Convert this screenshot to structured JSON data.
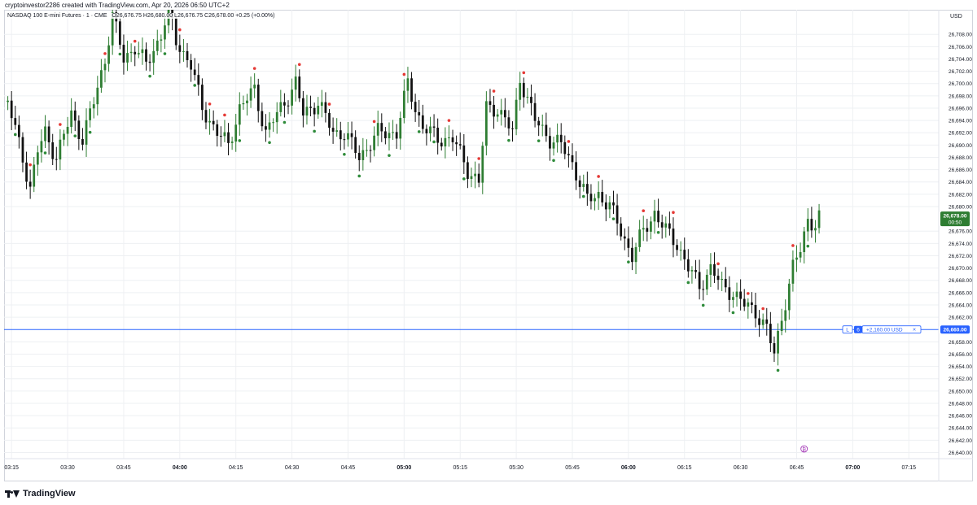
{
  "header": {
    "credit": "cryptoinvestor2286 created with TradingView.com, Apr 20, 2026 06:50 UTC+2"
  },
  "symbol_bar": {
    "name": "NASDAQ 100 E-mini Futures · 1 · CME",
    "ohlc": "O26,676.75 H26,680.00 L26,676.75 C26,678.00 +0.25 (+0.00%)"
  },
  "footer": {
    "brand": "TradingView"
  },
  "colors": {
    "up": "#2e7d32",
    "down": "#111111",
    "dot_up": "#2e8b3a",
    "dot_down": "#e53935",
    "price_label": "#2e7d32",
    "order_line": "#2962ff",
    "grid": "#eef0f3"
  },
  "chart_data": {
    "type": "candlestick",
    "currency_label": "USD",
    "y_ticks": [
      "26,708.00",
      "26,706.00",
      "26,704.00",
      "26,702.00",
      "26,700.00",
      "26,698.00",
      "26,696.00",
      "26,694.00",
      "26,692.00",
      "26,690.00",
      "26,688.00",
      "26,686.00",
      "26,684.00",
      "26,682.00",
      "26,680.00",
      "26,676.00",
      "26,674.00",
      "26,672.00",
      "26,670.00",
      "26,668.00",
      "26,666.00",
      "26,664.00",
      "26,662.00",
      "26,658.00",
      "26,656.00",
      "26,654.00",
      "26,652.00",
      "26,650.00",
      "26,648.00",
      "26,646.00",
      "26,644.00",
      "26,642.00",
      "26,640.00"
    ],
    "ylim": [
      26639,
      26712
    ],
    "x_ticks": [
      {
        "label": "03:15",
        "time": "03:15",
        "bold": false
      },
      {
        "label": "03:30",
        "time": "03:30",
        "bold": false
      },
      {
        "label": "03:45",
        "time": "03:45",
        "bold": false
      },
      {
        "label": "04:00",
        "time": "04:00",
        "bold": true
      },
      {
        "label": "04:15",
        "time": "04:15",
        "bold": false
      },
      {
        "label": "04:30",
        "time": "04:30",
        "bold": false
      },
      {
        "label": "04:45",
        "time": "04:45",
        "bold": false
      },
      {
        "label": "05:00",
        "time": "05:00",
        "bold": true
      },
      {
        "label": "05:15",
        "time": "05:15",
        "bold": false
      },
      {
        "label": "05:30",
        "time": "05:30",
        "bold": false
      },
      {
        "label": "05:45",
        "time": "05:45",
        "bold": false
      },
      {
        "label": "06:00",
        "time": "06:00",
        "bold": true
      },
      {
        "label": "06:15",
        "time": "06:15",
        "bold": false
      },
      {
        "label": "06:30",
        "time": "06:30",
        "bold": false
      },
      {
        "label": "06:45",
        "time": "06:45",
        "bold": false
      },
      {
        "label": "07:00",
        "time": "07:00",
        "bold": true
      },
      {
        "label": "07:15",
        "time": "07:15",
        "bold": false
      }
    ],
    "xlim": [
      "03:13",
      "07:23"
    ],
    "anchors": [
      {
        "time": "03:14",
        "price": 26697.0
      },
      {
        "time": "03:18",
        "price": 26688.0
      },
      {
        "time": "03:20",
        "price": 26683.0
      },
      {
        "time": "03:22",
        "price": 26689.0
      },
      {
        "time": "03:24",
        "price": 26692.0
      },
      {
        "time": "03:27",
        "price": 26688.0
      },
      {
        "time": "03:31",
        "price": 26695.0
      },
      {
        "time": "03:34",
        "price": 26691.0
      },
      {
        "time": "03:37",
        "price": 26697.0
      },
      {
        "time": "03:40",
        "price": 26704.0
      },
      {
        "time": "03:42",
        "price": 26711.0
      },
      {
        "time": "03:45",
        "price": 26704.0
      },
      {
        "time": "03:48",
        "price": 26706.0
      },
      {
        "time": "03:51",
        "price": 26703.0
      },
      {
        "time": "03:55",
        "price": 26708.0
      },
      {
        "time": "03:57",
        "price": 26712.0
      },
      {
        "time": "03:59",
        "price": 26707.0
      },
      {
        "time": "04:03",
        "price": 26703.0
      },
      {
        "time": "04:06",
        "price": 26696.0
      },
      {
        "time": "04:10",
        "price": 26692.0
      },
      {
        "time": "04:13",
        "price": 26690.0
      },
      {
        "time": "04:16",
        "price": 26696.0
      },
      {
        "time": "04:20",
        "price": 26699.0
      },
      {
        "time": "04:23",
        "price": 26692.0
      },
      {
        "time": "04:28",
        "price": 26697.0
      },
      {
        "time": "04:31",
        "price": 26700.0
      },
      {
        "time": "04:33",
        "price": 26695.0
      },
      {
        "time": "04:37",
        "price": 26697.0
      },
      {
        "time": "04:41",
        "price": 26692.0
      },
      {
        "time": "04:44",
        "price": 26692.0
      },
      {
        "time": "04:48",
        "price": 26688.0
      },
      {
        "time": "04:53",
        "price": 26692.0
      },
      {
        "time": "04:58",
        "price": 26692.0
      },
      {
        "time": "05:01",
        "price": 26700.0
      },
      {
        "time": "05:03",
        "price": 26696.0
      },
      {
        "time": "05:05",
        "price": 26693.0
      },
      {
        "time": "05:09",
        "price": 26691.0
      },
      {
        "time": "05:13",
        "price": 26691.0
      },
      {
        "time": "05:17",
        "price": 26686.0
      },
      {
        "time": "05:20",
        "price": 26684.0
      },
      {
        "time": "05:22",
        "price": 26696.0
      },
      {
        "time": "05:25",
        "price": 26696.0
      },
      {
        "time": "05:29",
        "price": 26692.0
      },
      {
        "time": "05:31",
        "price": 26701.0
      },
      {
        "time": "05:35",
        "price": 26694.0
      },
      {
        "time": "05:39",
        "price": 26691.0
      },
      {
        "time": "05:42",
        "price": 26690.0
      },
      {
        "time": "05:45",
        "price": 26687.0
      },
      {
        "time": "05:49",
        "price": 26681.0
      },
      {
        "time": "05:52",
        "price": 26682.0
      },
      {
        "time": "05:55",
        "price": 26680.0
      },
      {
        "time": "05:58",
        "price": 26676.0
      },
      {
        "time": "06:01",
        "price": 26672.0
      },
      {
        "time": "06:04",
        "price": 26676.0
      },
      {
        "time": "06:07",
        "price": 26679.0
      },
      {
        "time": "06:10",
        "price": 26676.0
      },
      {
        "time": "06:13",
        "price": 26674.0
      },
      {
        "time": "06:16",
        "price": 26670.0
      },
      {
        "time": "06:19",
        "price": 26667.0
      },
      {
        "time": "06:22",
        "price": 26670.0
      },
      {
        "time": "06:25",
        "price": 26667.0
      },
      {
        "time": "06:28",
        "price": 26666.0
      },
      {
        "time": "06:31",
        "price": 26664.0
      },
      {
        "time": "06:34",
        "price": 26663.0
      },
      {
        "time": "06:37",
        "price": 26660.0
      },
      {
        "time": "06:39",
        "price": 26656.0
      },
      {
        "time": "06:41",
        "price": 26662.0
      },
      {
        "time": "06:44",
        "price": 26670.0
      },
      {
        "time": "06:46",
        "price": 26673.0
      },
      {
        "time": "06:48",
        "price": 26678.0
      },
      {
        "time": "06:50",
        "price": 26677.0
      },
      {
        "time": "06:51",
        "price": 26678.0
      }
    ],
    "last_price": {
      "value": "26,678.00",
      "countdown": "00:50",
      "price": 26678.0
    },
    "order_line": {
      "price": 26660.0,
      "label": "26,660.00",
      "qty": "6",
      "pnl": "+2,160.00 USD",
      "side_label": "L"
    },
    "event_marker": {
      "time": "06:47",
      "label": "₿"
    }
  }
}
